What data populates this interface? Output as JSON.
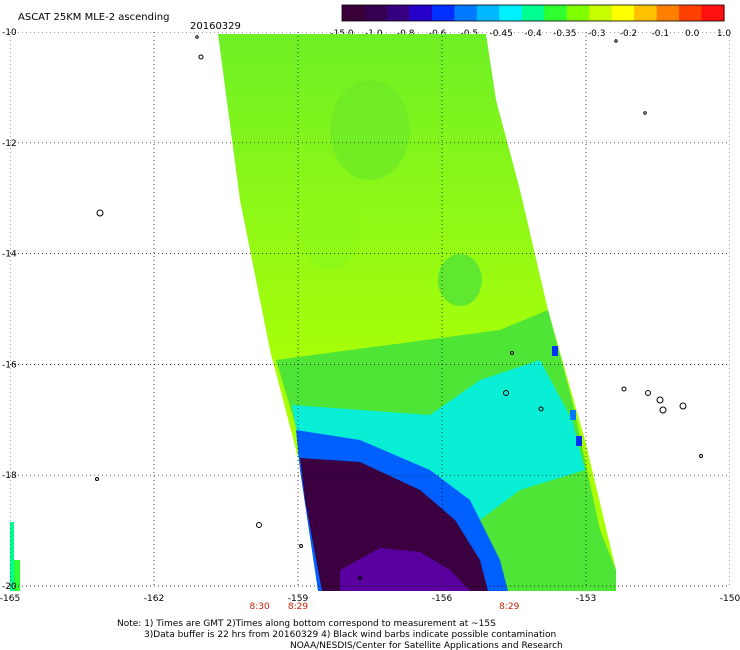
{
  "header": {
    "title": "ASCAT 25KM MLE-2 ascending",
    "date": "20160329"
  },
  "colorbar": {
    "labels": [
      "-15.0",
      "-1.0",
      "-0.8",
      "-0.6",
      "-0.5",
      "-0.45",
      "-0.4",
      "-0.35",
      "-0.3",
      "-0.2",
      "-0.1",
      "0.0",
      "1.0"
    ],
    "colors": [
      "#3a0038",
      "#34004f",
      "#360080",
      "#2600c8",
      "#0030ff",
      "#0078ff",
      "#00b8ff",
      "#00f0ff",
      "#00ff90",
      "#30ff30",
      "#80ff00",
      "#c8ff00",
      "#ffff00",
      "#ffc000",
      "#ff8000",
      "#ff4000",
      "#ff1010"
    ]
  },
  "map": {
    "lat_labels": [
      "-10",
      "-12",
      "-14",
      "-16",
      "-18",
      "-20"
    ],
    "lon_labels": [
      "-165",
      "-162",
      "-159",
      "-156",
      "-153",
      "-150"
    ],
    "lat_range": [
      -20,
      -10
    ],
    "lon_range": [
      -165,
      -150
    ],
    "time_labels": [
      {
        "text": "8:30",
        "lon": -159.8
      },
      {
        "text": "8:29",
        "lon": -159
      },
      {
        "text": "8:29",
        "lon": -154.6
      }
    ]
  },
  "footer": {
    "line1": "Note: 1) Times are GMT 2)Times along bottom correspond to measurement at ~15S",
    "line2": "3)Data buffer is 22 hrs from 20160329 4) Black wind barbs indicate possible contamination",
    "line3": "NOAA/NESDIS/Center for Satellite Applications and Research"
  }
}
